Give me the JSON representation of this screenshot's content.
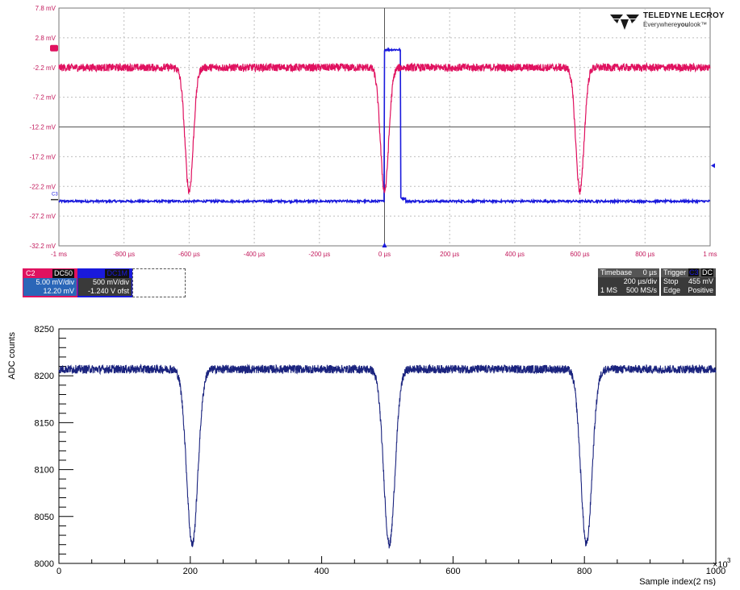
{
  "scope": {
    "brand": "TELEDYNE LECROY",
    "slogan": "Everywhereyoulook",
    "slogan_parts": [
      "Everywhere",
      "you",
      "look"
    ],
    "colors": {
      "c2": "#e0115f",
      "c3": "#1a1adc",
      "grid": "#bdbdbd",
      "tick": "#c2185b"
    },
    "y_labels": [
      "7.8 mV",
      "2.8 mV",
      "-2.2 mV",
      "-7.2 mV",
      "-12.2 mV",
      "-17.2 mV",
      "-22.2 mV",
      "-27.2 mV",
      "-32.2 mV"
    ],
    "x_labels": [
      "-1 ms",
      "-800 µs",
      "-600 µs",
      "-400 µs",
      "-200 µs",
      "0 µs",
      "200 µs",
      "400 µs",
      "600 µs",
      "800 µs",
      "1 ms"
    ],
    "channel_marker_c3": "C3",
    "chart_data": {
      "type": "line",
      "x_range_us": [
        -1000,
        1000
      ],
      "y_range_mV": [
        -32.2,
        7.8
      ],
      "series": [
        {
          "name": "C2",
          "baseline_mV": -2.2,
          "pulse_centers_us": [
            -600,
            0,
            600
          ],
          "pulse_min_mV": -23.0
        },
        {
          "name": "C3",
          "low_mV": -24.7,
          "high_mV": 0.8,
          "step_start_us": 0,
          "step_end_us": 50
        }
      ]
    },
    "c2_box": {
      "name": "C2",
      "coupling": "DC50",
      "scale": "5.00 mV/div",
      "offset": "12.20 mV"
    },
    "c3_box": {
      "name": "C3",
      "coupling": "DC1M",
      "scale": "500 mV/div",
      "offset": "-1.240 V ofst"
    },
    "timebase": {
      "label": "Timebase",
      "delay": "0 µs",
      "per_div": "200 µs/div",
      "samples": "1 MS",
      "rate": "500 MS/s"
    },
    "trigger": {
      "label": "Trigger",
      "source": "C3",
      "coupling": "DC",
      "mode": "Stop",
      "level": "455 mV",
      "type": "Edge",
      "slope": "Positive"
    }
  },
  "root": {
    "ylabel": "ADC counts",
    "xlabel": "Sample index(2 ns)",
    "exponent": "×10",
    "exponent_power": "3",
    "y_ticks": [
      "8000",
      "8050",
      "8100",
      "8150",
      "8200",
      "8250"
    ],
    "x_ticks": [
      "0",
      "200",
      "400",
      "600",
      "800",
      "1000"
    ],
    "line_color": "#1a237e",
    "chart_data": {
      "type": "line",
      "x_range_k": [
        0,
        1000
      ],
      "y_range": [
        8000,
        8250
      ],
      "series": [
        {
          "baseline": 8207,
          "pulse_centers_k": [
            203,
            503,
            803
          ],
          "pulse_min": 8020
        }
      ]
    }
  }
}
